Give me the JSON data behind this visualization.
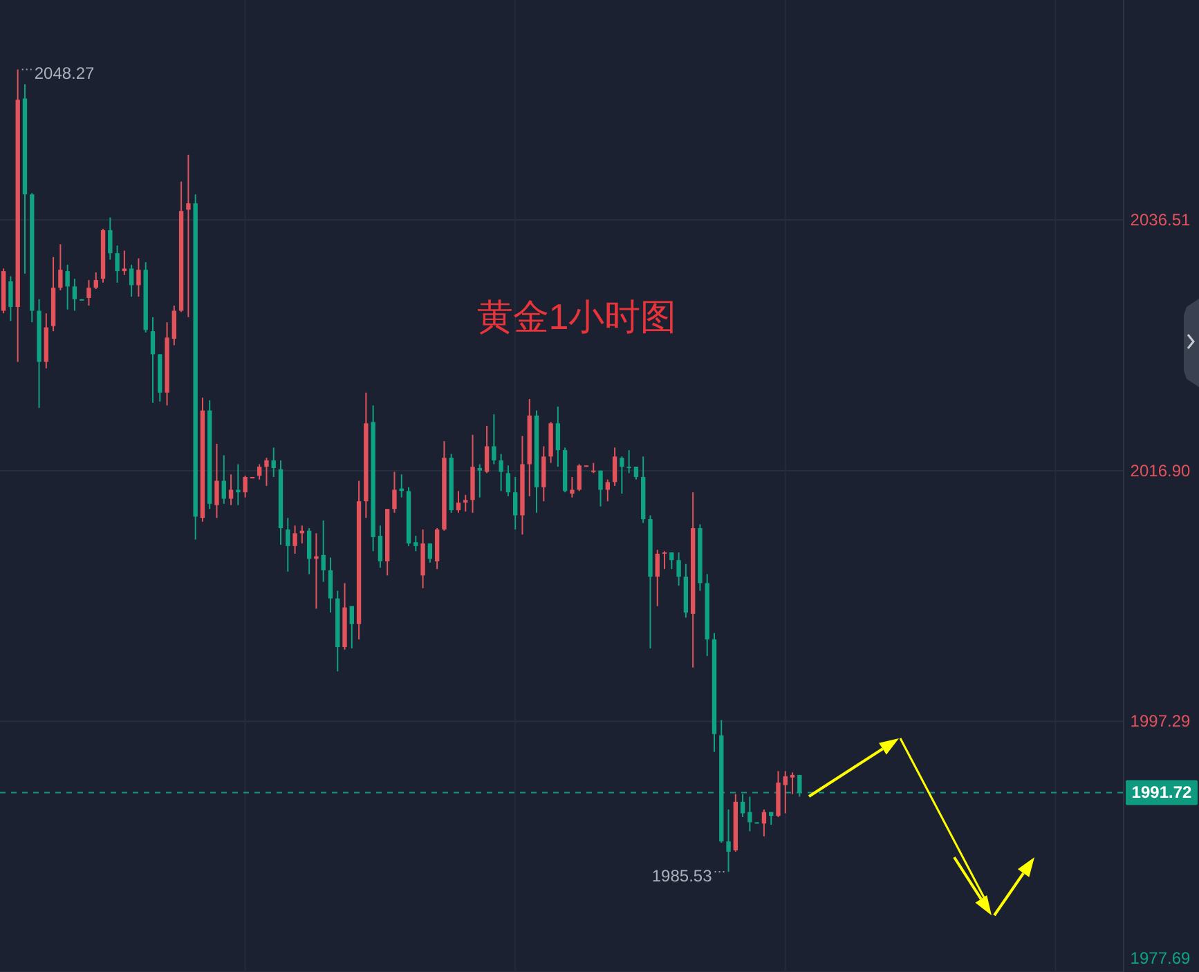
{
  "chart_data": {
    "type": "candlestick",
    "title": "黄金1小时图",
    "ohlc": [
      [
        2029.4,
        2032.7,
        2029.2,
        2032.5
      ],
      [
        2031.7,
        2032.1,
        2028.6,
        2029.7
      ],
      [
        2029.7,
        2048.27,
        2025.4,
        2045.9
      ],
      [
        2046.0,
        2047.1,
        2032.3,
        2038.5
      ],
      [
        2038.5,
        2038.6,
        2028.5,
        2029.4
      ],
      [
        2029.4,
        2030.3,
        2021.8,
        2025.4
      ],
      [
        2025.4,
        2029.2,
        2024.9,
        2028.1
      ],
      [
        2028.2,
        2033.6,
        2027.8,
        2031.2
      ],
      [
        2031.2,
        2034.6,
        2031.0,
        2032.6
      ],
      [
        2032.5,
        2033.0,
        2029.5,
        2031.3
      ],
      [
        2031.3,
        2031.9,
        2029.4,
        2030.3
      ],
      [
        2030.3,
        2030.3,
        2030.2,
        2030.2
      ],
      [
        2030.4,
        2031.8,
        2029.8,
        2031.2
      ],
      [
        2031.2,
        2032.4,
        2031.1,
        2031.8
      ],
      [
        2031.9,
        2035.8,
        2031.6,
        2035.7
      ],
      [
        2035.7,
        2036.7,
        2033.4,
        2033.9
      ],
      [
        2033.9,
        2034.5,
        2031.6,
        2032.5
      ],
      [
        2032.5,
        2034.1,
        2032.2,
        2032.7
      ],
      [
        2032.7,
        2033.0,
        2030.5,
        2031.4
      ],
      [
        2031.4,
        2033.5,
        2030.5,
        2032.6
      ],
      [
        2032.6,
        2033.2,
        2027.7,
        2027.9
      ],
      [
        2027.8,
        2028.9,
        2022.2,
        2026.0
      ],
      [
        2026.0,
        2026.0,
        2022.3,
        2023.0
      ],
      [
        2023.0,
        2028.5,
        2022.0,
        2027.3
      ],
      [
        2027.2,
        2029.8,
        2026.7,
        2029.4
      ],
      [
        2029.4,
        2039.5,
        2029.3,
        2037.2
      ],
      [
        2037.3,
        2041.6,
        2028.9,
        2037.8
      ],
      [
        2037.8,
        2038.5,
        2011.5,
        2013.3
      ],
      [
        2013.2,
        2022.6,
        2012.9,
        2021.6
      ],
      [
        2021.6,
        2022.4,
        2013.9,
        2014.3
      ],
      [
        2014.2,
        2019.0,
        2013.2,
        2016.1
      ],
      [
        2016.1,
        2018.1,
        2014.3,
        2014.7
      ],
      [
        2014.7,
        2016.6,
        2014.2,
        2015.4
      ],
      [
        2015.4,
        2017.4,
        2014.2,
        2015.2
      ],
      [
        2015.2,
        2016.5,
        2014.8,
        2016.4
      ],
      [
        2016.3,
        2016.4,
        2016.3,
        2016.4
      ],
      [
        2016.5,
        2017.4,
        2016.2,
        2017.2
      ],
      [
        2017.2,
        2017.9,
        2015.7,
        2017.7
      ],
      [
        2017.7,
        2018.7,
        2016.4,
        2017.1
      ],
      [
        2017.0,
        2017.7,
        2011.1,
        2012.4
      ],
      [
        2012.3,
        2013.2,
        2009.0,
        2011.0
      ],
      [
        2011.0,
        2012.6,
        2010.4,
        2012.0
      ],
      [
        2012.0,
        2012.6,
        2011.2,
        2012.2
      ],
      [
        2012.2,
        2012.4,
        2008.8,
        2010.0
      ],
      [
        2010.0,
        2012.0,
        2006.1,
        2010.2
      ],
      [
        2010.3,
        2013.0,
        2008.2,
        2009.1
      ],
      [
        2009.1,
        2010.1,
        2005.8,
        2006.9
      ],
      [
        2006.9,
        2007.5,
        2001.2,
        2003.1
      ],
      [
        2003.1,
        2008.1,
        2002.9,
        2006.2
      ],
      [
        2006.3,
        2006.3,
        2003.0,
        2004.9
      ],
      [
        2004.9,
        2016.1,
        2003.7,
        2014.5
      ],
      [
        2014.5,
        2023.0,
        2013.2,
        2020.6
      ],
      [
        2020.7,
        2022.0,
        2010.6,
        2011.7
      ],
      [
        2011.8,
        2012.6,
        2009.3,
        2009.8
      ],
      [
        2009.8,
        2013.9,
        2008.7,
        2013.9
      ],
      [
        2013.9,
        2016.8,
        2013.6,
        2015.4
      ],
      [
        2015.5,
        2016.6,
        2014.8,
        2015.3
      ],
      [
        2015.3,
        2015.6,
        2011.0,
        2011.2
      ],
      [
        2011.3,
        2011.8,
        2010.6,
        2011.0
      ],
      [
        2008.7,
        2012.3,
        2007.7,
        2011.2
      ],
      [
        2011.2,
        2011.2,
        2009.7,
        2010.0
      ],
      [
        2009.8,
        2012.4,
        2009.2,
        2012.3
      ],
      [
        2012.3,
        2019.2,
        2012.2,
        2017.9
      ],
      [
        2017.9,
        2018.2,
        2013.6,
        2013.8
      ],
      [
        2013.8,
        2015.3,
        2013.6,
        2014.4
      ],
      [
        2014.4,
        2015.0,
        2013.7,
        2014.6
      ],
      [
        2014.6,
        2019.7,
        2013.6,
        2017.2
      ],
      [
        2017.1,
        2017.4,
        2014.8,
        2016.9
      ],
      [
        2016.8,
        2020.4,
        2016.7,
        2018.8
      ],
      [
        2018.8,
        2021.3,
        2017.4,
        2017.7
      ],
      [
        2017.7,
        2018.2,
        2015.3,
        2016.8
      ],
      [
        2016.7,
        2017.3,
        2014.9,
        2015.2
      ],
      [
        2015.2,
        2016.4,
        2012.3,
        2013.4
      ],
      [
        2013.4,
        2019.6,
        2011.9,
        2017.4
      ],
      [
        2017.4,
        2022.5,
        2014.9,
        2021.2
      ],
      [
        2021.2,
        2021.6,
        2013.6,
        2015.6
      ],
      [
        2015.6,
        2018.8,
        2014.5,
        2018.0
      ],
      [
        2018.0,
        2020.7,
        2017.5,
        2020.6
      ],
      [
        2020.6,
        2021.9,
        2017.2,
        2018.5
      ],
      [
        2018.5,
        2018.7,
        2015.2,
        2015.3
      ],
      [
        2015.1,
        2016.4,
        2014.8,
        2015.4
      ],
      [
        2015.4,
        2017.4,
        2015.3,
        2017.3
      ],
      [
        2017.2,
        2017.3,
        2017.2,
        2017.3
      ],
      [
        2016.8,
        2017.5,
        2016.7,
        2016.9
      ],
      [
        2016.9,
        2016.9,
        2014.1,
        2015.4
      ],
      [
        2015.4,
        2016.2,
        2014.5,
        2016.0
      ],
      [
        2016.0,
        2018.7,
        2015.7,
        2018.0
      ],
      [
        2017.9,
        2018.0,
        2015.1,
        2017.2
      ],
      [
        2017.2,
        2018.5,
        2016.7,
        2017.1
      ],
      [
        2017.2,
        2017.2,
        2016.2,
        2016.4
      ],
      [
        2016.4,
        2018.0,
        2012.8,
        2013.1
      ],
      [
        2013.1,
        2013.4,
        2003.0,
        2008.6
      ],
      [
        2008.6,
        2010.7,
        2006.3,
        2010.4
      ],
      [
        2010.4,
        2010.6,
        2009.2,
        2010.5
      ],
      [
        2010.5,
        2010.5,
        2009.2,
        2009.9
      ],
      [
        2009.9,
        2010.5,
        2007.9,
        2008.6
      ],
      [
        2008.6,
        2009.6,
        2005.4,
        2005.8
      ],
      [
        2005.7,
        2015.2,
        2001.5,
        2012.4
      ],
      [
        2012.4,
        2012.7,
        2007.5,
        2008.1
      ],
      [
        2008.1,
        2008.8,
        2002.4,
        2003.7
      ],
      [
        2003.7,
        2004.2,
        1994.9,
        1996.3
      ],
      [
        1996.2,
        1997.4,
        1987.8,
        1987.9
      ],
      [
        1987.9,
        1990.4,
        1985.53,
        1987.1
      ],
      [
        1987.2,
        1991.6,
        1987.1,
        1991.0
      ],
      [
        1991.0,
        1991.6,
        1989.8,
        1990.1
      ],
      [
        1990.2,
        1991.4,
        1988.7,
        1989.4
      ],
      [
        1989.4,
        1989.4,
        1989.3,
        1989.3
      ],
      [
        1989.3,
        1990.4,
        1988.3,
        1990.2
      ],
      [
        1990.2,
        1990.2,
        1989.2,
        1989.9
      ],
      [
        1989.9,
        1993.4,
        1989.8,
        1992.5
      ],
      [
        1992.3,
        1993.4,
        1990.1,
        1993.0
      ],
      [
        1992.9,
        1993.3,
        1991.6,
        1993.1
      ],
      [
        1993.1,
        1993.1,
        1991.4,
        1991.72
      ],
      null,
      null,
      null,
      null,
      null,
      null,
      null,
      null,
      null,
      null,
      null,
      null,
      null,
      null,
      null,
      null,
      null,
      null,
      null,
      null,
      null,
      null,
      null,
      null,
      null,
      null,
      null,
      null,
      null,
      null,
      null,
      null,
      null,
      null,
      null,
      null,
      null,
      null,
      null,
      null,
      null,
      null,
      null,
      null,
      null
    ],
    "categories": [
      null,
      null,
      null,
      null,
      null,
      null,
      null,
      null,
      null,
      null,
      null,
      null,
      null,
      null,
      null,
      null,
      null,
      null,
      null,
      null,
      null,
      null,
      null,
      null,
      null,
      null,
      null,
      null,
      null,
      null,
      null,
      null,
      null,
      null,
      null,
      null,
      null,
      null,
      null,
      null,
      null,
      null,
      null,
      null,
      null,
      null,
      null,
      null,
      null,
      null,
      null,
      null,
      null,
      null,
      null,
      null,
      null,
      null,
      null,
      null,
      null,
      null,
      null,
      null,
      null,
      null,
      null,
      null,
      null,
      null,
      null,
      null,
      null,
      null,
      null,
      null,
      null,
      null,
      null,
      null,
      null,
      null,
      null,
      null,
      null,
      null,
      null,
      null,
      null,
      null,
      null,
      null,
      null,
      null,
      null,
      null,
      null,
      null,
      null,
      null,
      null,
      null,
      null,
      null,
      null,
      null,
      null,
      null,
      null,
      null,
      null,
      null,
      null,
      null,
      null,
      null,
      null,
      null,
      null,
      null,
      null,
      null,
      null,
      null,
      null,
      null,
      null,
      null,
      null,
      null,
      null,
      null,
      null,
      null,
      null,
      null,
      null,
      null,
      null,
      null,
      null,
      null,
      null,
      null,
      null,
      null,
      null,
      null,
      null,
      null,
      null,
      null,
      null,
      null,
      null,
      null,
      null,
      null
    ],
    "colors": [
      "#e2535c",
      "#0fa383",
      "#e2535c",
      "#0fa383",
      "#0fa383",
      "#0fa383",
      "#e2535c",
      "#e2535c",
      "#e2535c",
      "#0fa383",
      "#0fa383",
      "#0fa383",
      "#e2535c",
      "#e2535c",
      "#e2535c",
      "#0fa383",
      "#0fa383",
      "#e2535c",
      "#0fa383",
      "#e2535c",
      "#0fa383",
      "#0fa383",
      "#0fa383",
      "#e2535c",
      "#e2535c",
      "#e2535c",
      "#e2535c",
      "#0fa383",
      "#e2535c",
      "#0fa383",
      "#e2535c",
      "#0fa383",
      "#e2535c",
      "#0fa383",
      "#e2535c",
      "#e2535c",
      "#e2535c",
      "#e2535c",
      "#0fa383",
      "#0fa383",
      "#0fa383",
      "#e2535c",
      "#e2535c",
      "#0fa383",
      "#e2535c",
      "#0fa383",
      "#0fa383",
      "#0fa383",
      "#e2535c",
      "#0fa383",
      "#e2535c",
      "#e2535c",
      "#0fa383",
      "#0fa383",
      "#e2535c",
      "#e2535c",
      "#0fa383",
      "#0fa383",
      "#0fa383",
      "#e2535c",
      "#0fa383",
      "#e2535c",
      "#e2535c",
      "#0fa383",
      "#e2535c",
      "#e2535c",
      "#e2535c",
      "#0fa383",
      "#e2535c",
      "#0fa383",
      "#0fa383",
      "#0fa383",
      "#0fa383",
      "#e2535c",
      "#e2535c",
      "#0fa383",
      "#e2535c",
      "#e2535c",
      "#0fa383",
      "#0fa383",
      "#e2535c",
      "#e2535c",
      "#e2535c",
      "#e2535c",
      "#0fa383",
      "#e2535c",
      "#e2535c",
      "#0fa383",
      "#0fa383",
      "#0fa383",
      "#0fa383",
      "#0fa383",
      "#e2535c",
      "#e2535c",
      "#0fa383",
      "#0fa383",
      "#0fa383",
      "#e2535c",
      "#0fa383",
      "#0fa383",
      "#0fa383",
      "#0fa383",
      "#0fa383",
      "#e2535c",
      "#0fa383",
      "#0fa383",
      "#0fa383",
      "#e2535c",
      "#0fa383",
      "#e2535c",
      "#e2535c",
      "#e2535c",
      "#0fa383",
      null,
      null,
      null,
      null,
      null,
      null,
      null,
      null,
      null,
      null,
      null,
      null,
      null,
      null,
      null,
      null,
      null,
      null,
      null,
      null,
      null,
      null,
      null,
      null,
      null,
      null,
      null,
      null,
      null,
      null,
      null,
      null,
      null,
      null,
      null,
      null,
      null,
      null,
      null,
      null,
      null,
      null,
      null,
      null,
      null
    ],
    "ylim": [
      1977.69,
      2053.7
    ],
    "yticks": [
      1977.69,
      1997.29,
      {
        "value": 2016.9,
        "label": "2016.90"
      },
      2036.51
    ],
    "ref_lines": [
      {
        "axis": "y",
        "value": 1991.72,
        "label": "1991.72",
        "color": "#0f9a80",
        "line_style": "dashed"
      }
    ],
    "annotations": [
      "2048.27",
      "1985.53"
    ],
    "grid": true
  }
}
